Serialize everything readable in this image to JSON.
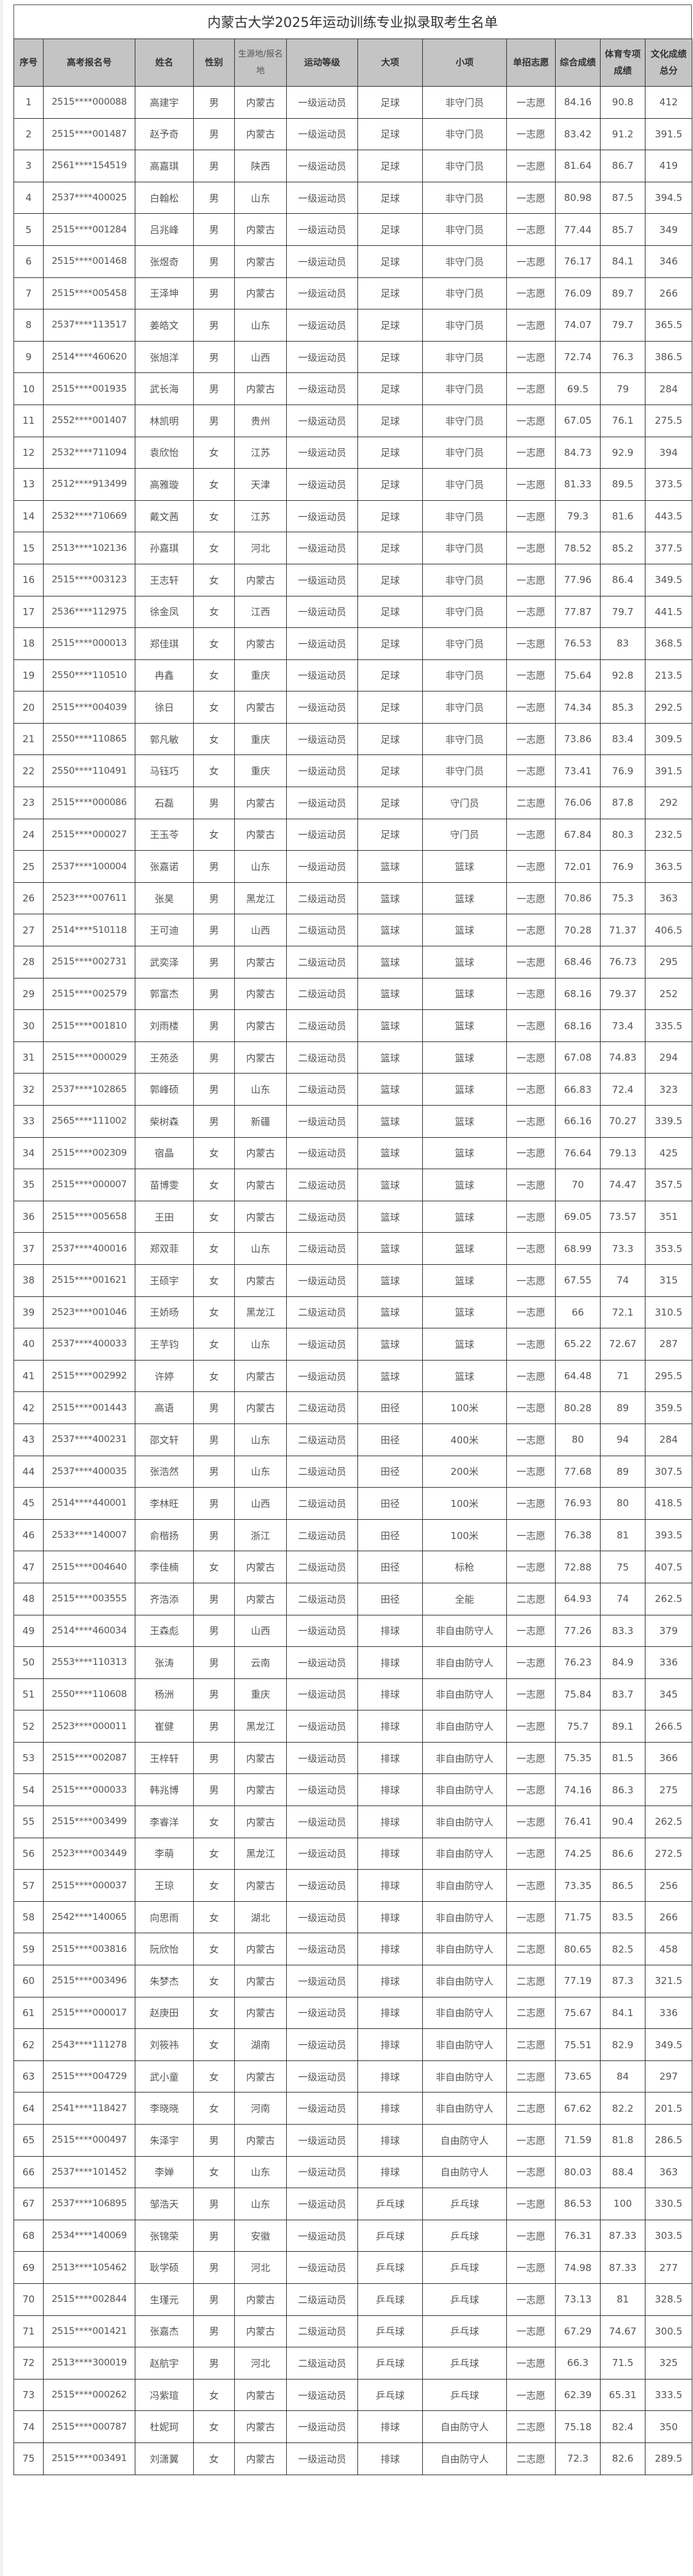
{
  "title": "内蒙古大学2025年运动训练专业拟录取考生名单",
  "columns": [
    "序号",
    "高考报名号",
    "姓名",
    "性别",
    "生源地/报名地",
    "运动等级",
    "大项",
    "小项",
    "单招志愿",
    "综合成绩",
    "体育专项成绩",
    "文化成绩总分"
  ],
  "rows": [
    [
      "1",
      "2515****000088",
      "高建宇",
      "男",
      "内蒙古",
      "一级运动员",
      "足球",
      "非守门员",
      "一志愿",
      "84.16",
      "90.8",
      "412"
    ],
    [
      "2",
      "2515****001487",
      "赵予奇",
      "男",
      "内蒙古",
      "一级运动员",
      "足球",
      "非守门员",
      "一志愿",
      "83.42",
      "91.2",
      "391.5"
    ],
    [
      "3",
      "2561****154519",
      "高嘉琪",
      "男",
      "陕西",
      "一级运动员",
      "足球",
      "非守门员",
      "一志愿",
      "81.64",
      "86.7",
      "419"
    ],
    [
      "4",
      "2537****400025",
      "白翰松",
      "男",
      "山东",
      "一级运动员",
      "足球",
      "非守门员",
      "一志愿",
      "80.98",
      "87.5",
      "394.5"
    ],
    [
      "5",
      "2515****001284",
      "吕兆峰",
      "男",
      "内蒙古",
      "一级运动员",
      "足球",
      "非守门员",
      "一志愿",
      "77.44",
      "85.7",
      "349"
    ],
    [
      "6",
      "2515****001468",
      "张煜奇",
      "男",
      "内蒙古",
      "一级运动员",
      "足球",
      "非守门员",
      "一志愿",
      "76.17",
      "84.1",
      "346"
    ],
    [
      "7",
      "2515****005458",
      "王泽坤",
      "男",
      "内蒙古",
      "一级运动员",
      "足球",
      "非守门员",
      "一志愿",
      "76.09",
      "89.7",
      "266"
    ],
    [
      "8",
      "2537****113517",
      "姜皓文",
      "男",
      "山东",
      "一级运动员",
      "足球",
      "非守门员",
      "一志愿",
      "74.07",
      "79.7",
      "365.5"
    ],
    [
      "9",
      "2514****460620",
      "张旭洋",
      "男",
      "山西",
      "一级运动员",
      "足球",
      "非守门员",
      "一志愿",
      "72.74",
      "76.3",
      "386.5"
    ],
    [
      "10",
      "2515****001935",
      "武长海",
      "男",
      "内蒙古",
      "一级运动员",
      "足球",
      "非守门员",
      "一志愿",
      "69.5",
      "79",
      "284"
    ],
    [
      "11",
      "2552****001407",
      "林凯明",
      "男",
      "贵州",
      "一级运动员",
      "足球",
      "非守门员",
      "一志愿",
      "67.05",
      "76.1",
      "275.5"
    ],
    [
      "12",
      "2532****711094",
      "袁欣怡",
      "女",
      "江苏",
      "一级运动员",
      "足球",
      "非守门员",
      "一志愿",
      "84.73",
      "92.9",
      "394"
    ],
    [
      "13",
      "2512****913499",
      "高雅璇",
      "女",
      "天津",
      "一级运动员",
      "足球",
      "非守门员",
      "一志愿",
      "81.33",
      "89.5",
      "373.5"
    ],
    [
      "14",
      "2532****710669",
      "戴文茜",
      "女",
      "江苏",
      "一级运动员",
      "足球",
      "非守门员",
      "一志愿",
      "79.3",
      "81.6",
      "443.5"
    ],
    [
      "15",
      "2513****102136",
      "孙嘉琪",
      "女",
      "河北",
      "一级运动员",
      "足球",
      "非守门员",
      "一志愿",
      "78.52",
      "85.2",
      "377.5"
    ],
    [
      "16",
      "2515****003123",
      "王志轩",
      "女",
      "内蒙古",
      "一级运动员",
      "足球",
      "非守门员",
      "一志愿",
      "77.96",
      "86.4",
      "349.5"
    ],
    [
      "17",
      "2536****112975",
      "徐金凤",
      "女",
      "江西",
      "一级运动员",
      "足球",
      "非守门员",
      "一志愿",
      "77.87",
      "79.7",
      "441.5"
    ],
    [
      "18",
      "2515****000013",
      "郑佳琪",
      "女",
      "内蒙古",
      "一级运动员",
      "足球",
      "非守门员",
      "一志愿",
      "76.53",
      "83",
      "368.5"
    ],
    [
      "19",
      "2550****110510",
      "冉鑫",
      "女",
      "重庆",
      "一级运动员",
      "足球",
      "非守门员",
      "一志愿",
      "75.64",
      "92.8",
      "213.5"
    ],
    [
      "20",
      "2515****004039",
      "徐日",
      "女",
      "内蒙古",
      "一级运动员",
      "足球",
      "非守门员",
      "一志愿",
      "74.34",
      "85.3",
      "292.5"
    ],
    [
      "21",
      "2550****110865",
      "郭凡敏",
      "女",
      "重庆",
      "一级运动员",
      "足球",
      "非守门员",
      "一志愿",
      "73.86",
      "83.4",
      "309.5"
    ],
    [
      "22",
      "2550****110491",
      "马钰巧",
      "女",
      "重庆",
      "一级运动员",
      "足球",
      "非守门员",
      "一志愿",
      "73.41",
      "76.9",
      "391.5"
    ],
    [
      "23",
      "2515****000086",
      "石磊",
      "男",
      "内蒙古",
      "一级运动员",
      "足球",
      "守门员",
      "二志愿",
      "76.06",
      "87.8",
      "292"
    ],
    [
      "24",
      "2515****000027",
      "王玉苓",
      "女",
      "内蒙古",
      "一级运动员",
      "足球",
      "守门员",
      "一志愿",
      "67.84",
      "80.3",
      "232.5"
    ],
    [
      "25",
      "2537****100004",
      "张嘉诺",
      "男",
      "山东",
      "一级运动员",
      "篮球",
      "篮球",
      "一志愿",
      "72.01",
      "76.9",
      "363.5"
    ],
    [
      "26",
      "2523****007611",
      "张昊",
      "男",
      "黑龙江",
      "二级运动员",
      "篮球",
      "篮球",
      "一志愿",
      "70.86",
      "75.3",
      "363"
    ],
    [
      "27",
      "2514****510118",
      "王可迪",
      "男",
      "山西",
      "二级运动员",
      "篮球",
      "篮球",
      "一志愿",
      "70.28",
      "71.37",
      "406.5"
    ],
    [
      "28",
      "2515****002731",
      "武奕泽",
      "男",
      "内蒙古",
      "二级运动员",
      "篮球",
      "篮球",
      "一志愿",
      "68.46",
      "76.73",
      "295"
    ],
    [
      "29",
      "2515****002579",
      "郭富杰",
      "男",
      "内蒙古",
      "二级运动员",
      "篮球",
      "篮球",
      "一志愿",
      "68.16",
      "79.37",
      "252"
    ],
    [
      "30",
      "2515****001810",
      "刘雨楼",
      "男",
      "内蒙古",
      "二级运动员",
      "篮球",
      "篮球",
      "一志愿",
      "68.16",
      "73.4",
      "335.5"
    ],
    [
      "31",
      "2515****000029",
      "王苑丞",
      "男",
      "内蒙古",
      "二级运动员",
      "篮球",
      "篮球",
      "一志愿",
      "67.08",
      "74.83",
      "294"
    ],
    [
      "32",
      "2537****102865",
      "郭峰硕",
      "男",
      "山东",
      "二级运动员",
      "篮球",
      "篮球",
      "一志愿",
      "66.83",
      "72.4",
      "323"
    ],
    [
      "33",
      "2565****111002",
      "柴树森",
      "男",
      "新疆",
      "一级运动员",
      "篮球",
      "篮球",
      "一志愿",
      "66.16",
      "70.27",
      "339.5"
    ],
    [
      "34",
      "2515****002309",
      "宿晶",
      "女",
      "内蒙古",
      "一级运动员",
      "篮球",
      "篮球",
      "一志愿",
      "76.64",
      "79.13",
      "425"
    ],
    [
      "35",
      "2515****000007",
      "苗博雯",
      "女",
      "内蒙古",
      "二级运动员",
      "篮球",
      "篮球",
      "一志愿",
      "70",
      "74.47",
      "357.5"
    ],
    [
      "36",
      "2515****005658",
      "王田",
      "女",
      "内蒙古",
      "二级运动员",
      "篮球",
      "篮球",
      "一志愿",
      "69.05",
      "73.57",
      "351"
    ],
    [
      "37",
      "2537****400016",
      "郑双菲",
      "女",
      "山东",
      "二级运动员",
      "篮球",
      "篮球",
      "一志愿",
      "68.99",
      "73.3",
      "353.5"
    ],
    [
      "38",
      "2515****001621",
      "王硕宇",
      "女",
      "内蒙古",
      "一级运动员",
      "篮球",
      "篮球",
      "一志愿",
      "67.55",
      "74",
      "315"
    ],
    [
      "39",
      "2523****001046",
      "王娇旸",
      "女",
      "黑龙江",
      "二级运动员",
      "篮球",
      "篮球",
      "一志愿",
      "66",
      "72.1",
      "310.5"
    ],
    [
      "40",
      "2537****400033",
      "王芋钧",
      "女",
      "山东",
      "一级运动员",
      "篮球",
      "篮球",
      "一志愿",
      "65.22",
      "72.67",
      "287"
    ],
    [
      "41",
      "2515****002992",
      "许婷",
      "女",
      "内蒙古",
      "一级运动员",
      "篮球",
      "篮球",
      "一志愿",
      "64.48",
      "71",
      "295.5"
    ],
    [
      "42",
      "2515****001443",
      "高语",
      "男",
      "内蒙古",
      "二级运动员",
      "田径",
      "100米",
      "一志愿",
      "80.28",
      "89",
      "359.5"
    ],
    [
      "43",
      "2537****400231",
      "邵文轩",
      "男",
      "山东",
      "二级运动员",
      "田径",
      "400米",
      "一志愿",
      "80",
      "94",
      "284"
    ],
    [
      "44",
      "2537****400035",
      "张浩然",
      "男",
      "山东",
      "二级运动员",
      "田径",
      "200米",
      "一志愿",
      "77.68",
      "89",
      "307.5"
    ],
    [
      "45",
      "2514****440001",
      "李林旺",
      "男",
      "山西",
      "二级运动员",
      "田径",
      "100米",
      "一志愿",
      "76.93",
      "80",
      "418.5"
    ],
    [
      "46",
      "2533****140007",
      "俞楷扬",
      "男",
      "浙江",
      "二级运动员",
      "田径",
      "100米",
      "一志愿",
      "76.38",
      "81",
      "393.5"
    ],
    [
      "47",
      "2515****004640",
      "李佳楠",
      "女",
      "内蒙古",
      "二级运动员",
      "田径",
      "标枪",
      "一志愿",
      "72.88",
      "75",
      "407.5"
    ],
    [
      "48",
      "2515****003555",
      "齐浩添",
      "男",
      "内蒙古",
      "二级运动员",
      "田径",
      "全能",
      "二志愿",
      "64.93",
      "74",
      "262.5"
    ],
    [
      "49",
      "2514****460034",
      "王森彪",
      "男",
      "山西",
      "一级运动员",
      "排球",
      "非自由防守人",
      "一志愿",
      "77.26",
      "83.3",
      "379"
    ],
    [
      "50",
      "2553****110313",
      "张涛",
      "男",
      "云南",
      "一级运动员",
      "排球",
      "非自由防守人",
      "一志愿",
      "76.23",
      "84.9",
      "336"
    ],
    [
      "51",
      "2550****110608",
      "杨洲",
      "男",
      "重庆",
      "一级运动员",
      "排球",
      "非自由防守人",
      "一志愿",
      "75.84",
      "83.7",
      "345"
    ],
    [
      "52",
      "2523****000011",
      "崔健",
      "男",
      "黑龙江",
      "一级运动员",
      "排球",
      "非自由防守人",
      "一志愿",
      "75.7",
      "89.1",
      "266.5"
    ],
    [
      "53",
      "2515****002087",
      "王梓轩",
      "男",
      "内蒙古",
      "一级运动员",
      "排球",
      "非自由防守人",
      "一志愿",
      "75.35",
      "81.5",
      "366"
    ],
    [
      "54",
      "2515****000033",
      "韩兆博",
      "男",
      "内蒙古",
      "一级运动员",
      "排球",
      "非自由防守人",
      "一志愿",
      "74.16",
      "86.3",
      "275"
    ],
    [
      "55",
      "2515****003499",
      "李睿洋",
      "女",
      "内蒙古",
      "一级运动员",
      "排球",
      "非自由防守人",
      "一志愿",
      "76.41",
      "90.4",
      "262.5"
    ],
    [
      "56",
      "2523****003449",
      "李萌",
      "女",
      "黑龙江",
      "一级运动员",
      "排球",
      "非自由防守人",
      "一志愿",
      "74.25",
      "86.6",
      "272.5"
    ],
    [
      "57",
      "2515****000037",
      "王琼",
      "女",
      "内蒙古",
      "一级运动员",
      "排球",
      "非自由防守人",
      "一志愿",
      "73.35",
      "86.5",
      "256"
    ],
    [
      "58",
      "2542****140065",
      "向思雨",
      "女",
      "湖北",
      "一级运动员",
      "排球",
      "非自由防守人",
      "一志愿",
      "71.75",
      "83.5",
      "266"
    ],
    [
      "59",
      "2515****003816",
      "阮欣怡",
      "女",
      "内蒙古",
      "一级运动员",
      "排球",
      "非自由防守人",
      "二志愿",
      "80.65",
      "82.5",
      "458"
    ],
    [
      "60",
      "2515****003496",
      "朱梦杰",
      "女",
      "内蒙古",
      "一级运动员",
      "排球",
      "非自由防守人",
      "二志愿",
      "77.19",
      "87.3",
      "321.5"
    ],
    [
      "61",
      "2515****000017",
      "赵庚田",
      "女",
      "内蒙古",
      "一级运动员",
      "排球",
      "非自由防守人",
      "二志愿",
      "75.67",
      "84.1",
      "336"
    ],
    [
      "62",
      "2543****111278",
      "刘筱祎",
      "女",
      "湖南",
      "一级运动员",
      "排球",
      "非自由防守人",
      "二志愿",
      "75.51",
      "82.9",
      "349.5"
    ],
    [
      "63",
      "2515****004729",
      "武小童",
      "女",
      "内蒙古",
      "一级运动员",
      "排球",
      "非自由防守人",
      "二志愿",
      "73.65",
      "84",
      "297"
    ],
    [
      "64",
      "2541****118427",
      "李晓晓",
      "女",
      "河南",
      "一级运动员",
      "排球",
      "非自由防守人",
      "二志愿",
      "67.62",
      "82.2",
      "201.5"
    ],
    [
      "65",
      "2515****000497",
      "朱泽宇",
      "男",
      "内蒙古",
      "一级运动员",
      "排球",
      "自由防守人",
      "一志愿",
      "71.59",
      "81.8",
      "286.5"
    ],
    [
      "66",
      "2537****101452",
      "李婵",
      "女",
      "山东",
      "一级运动员",
      "排球",
      "自由防守人",
      "一志愿",
      "80.03",
      "88.4",
      "363"
    ],
    [
      "67",
      "2537****106895",
      "邹浩天",
      "男",
      "山东",
      "一级运动员",
      "乒乓球",
      "乒乓球",
      "一志愿",
      "86.53",
      "100",
      "330.5"
    ],
    [
      "68",
      "2534****140069",
      "张锦荣",
      "男",
      "安徽",
      "一级运动员",
      "乒乓球",
      "乒乓球",
      "一志愿",
      "76.31",
      "87.33",
      "303.5"
    ],
    [
      "69",
      "2513****105462",
      "耿学硕",
      "男",
      "河北",
      "一级运动员",
      "乒乓球",
      "乒乓球",
      "一志愿",
      "74.98",
      "87.33",
      "277"
    ],
    [
      "70",
      "2515****002844",
      "生瑾元",
      "男",
      "内蒙古",
      "二级运动员",
      "乒乓球",
      "乒乓球",
      "一志愿",
      "73.13",
      "81",
      "328.5"
    ],
    [
      "71",
      "2515****001421",
      "张嘉杰",
      "男",
      "内蒙古",
      "二级运动员",
      "乒乓球",
      "乒乓球",
      "一志愿",
      "67.29",
      "74.67",
      "300.5"
    ],
    [
      "72",
      "2513****300019",
      "赵航宇",
      "男",
      "河北",
      "二级运动员",
      "乒乓球",
      "乒乓球",
      "一志愿",
      "66.3",
      "71.5",
      "325"
    ],
    [
      "73",
      "2515****000262",
      "冯紫瑄",
      "女",
      "内蒙古",
      "一级运动员",
      "乒乓球",
      "乒乓球",
      "一志愿",
      "62.39",
      "65.31",
      "333.5"
    ],
    [
      "74",
      "2515****000787",
      "杜妮珂",
      "女",
      "内蒙古",
      "一级运动员",
      "排球",
      "自由防守人",
      "二志愿",
      "75.18",
      "82.4",
      "350"
    ],
    [
      "75",
      "2515****003491",
      "刘潇翼",
      "女",
      "内蒙古",
      "一级运动员",
      "排球",
      "自由防守人",
      "二志愿",
      "72.3",
      "82.6",
      "289.5"
    ]
  ]
}
